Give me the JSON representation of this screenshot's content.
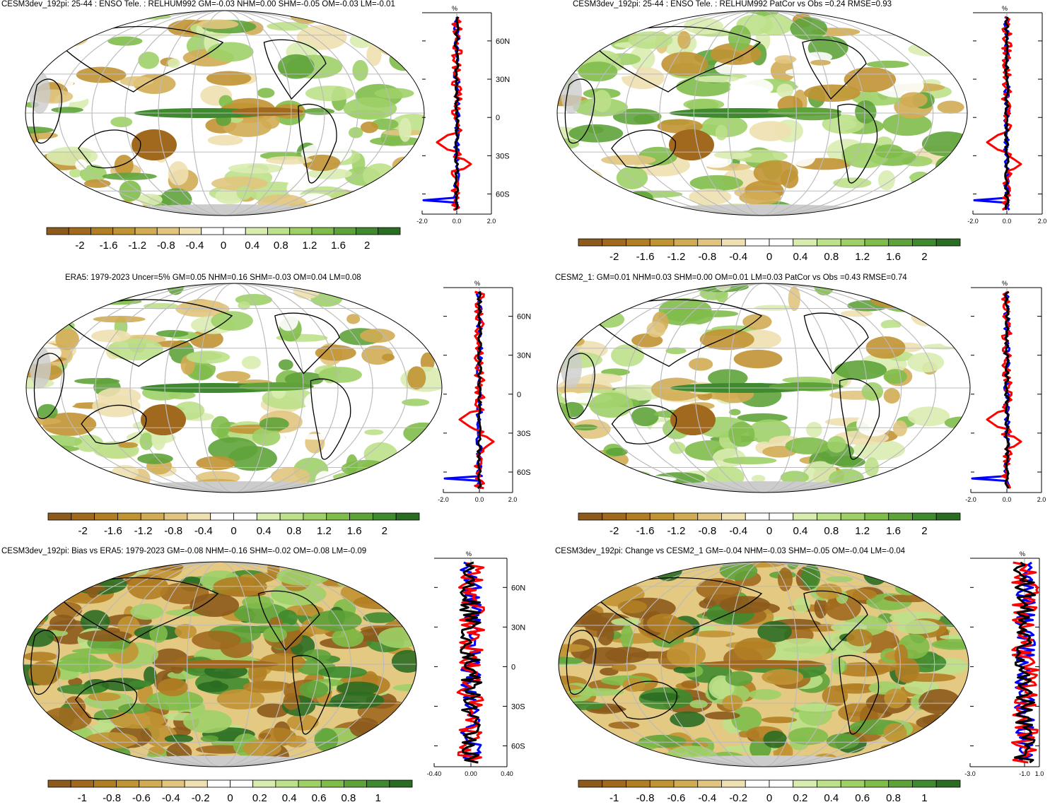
{
  "panels": [
    {
      "id": "p1",
      "title": "CESM3dev_192pi: 25-44 : ENSO Tele. : RELHUM992 GM=-0.03 NHM=0.00 SHM=-0.05 OM=-0.03 LM=-0.01",
      "profile_unit": "%",
      "profile_xticks": [
        "-2.0",
        "0.0",
        "2.0"
      ],
      "profile_lat_labels": [
        "60N",
        "30N",
        "0",
        "30S",
        "60S"
      ],
      "colorbar_labels": [
        "-2",
        "-1.6",
        "-1.2",
        "-0.8",
        "-0.4",
        "0",
        "0.4",
        "0.8",
        "1.2",
        "1.6",
        "2"
      ]
    },
    {
      "id": "p2",
      "title": "CESM3dev_192pi: 25-44 : ENSO Tele. : RELHUM992 PatCor vs Obs =0.24 RMSE=0.93",
      "profile_unit": "%",
      "profile_xticks": [
        "-2.0",
        "0.0",
        "2.0"
      ],
      "profile_lat_labels": [],
      "colorbar_labels": [
        "-2",
        "-1.6",
        "-1.2",
        "-0.8",
        "-0.4",
        "0",
        "0.4",
        "0.8",
        "1.2",
        "1.6",
        "2"
      ]
    },
    {
      "id": "p3",
      "title": "ERA5: 1979-2023 Uncer=5% GM=0.05 NHM=0.16 SHM=-0.03 OM=0.04 LM=0.08",
      "profile_unit": "%",
      "profile_xticks": [
        "-2.0",
        "0.0",
        "2.0"
      ],
      "profile_lat_labels": [
        "60N",
        "30N",
        "0",
        "30S",
        "60S"
      ],
      "colorbar_labels": [
        "-2",
        "-1.6",
        "-1.2",
        "-0.8",
        "-0.4",
        "0",
        "0.4",
        "0.8",
        "1.2",
        "1.6",
        "2"
      ]
    },
    {
      "id": "p4",
      "title": "CESM2_1: GM=0.01 NHM=0.03 SHM=0.00 OM=0.01 LM=0.03 PatCor vs Obs =0.43 RMSE=0.74",
      "profile_unit": "%",
      "profile_xticks": [
        "-2.0",
        "0.0",
        "2.0"
      ],
      "profile_lat_labels": [],
      "colorbar_labels": [
        "-2",
        "-1.6",
        "-1.2",
        "-0.8",
        "-0.4",
        "0",
        "0.4",
        "0.8",
        "1.2",
        "1.6",
        "2"
      ]
    },
    {
      "id": "p5",
      "title": "CESM3dev_192pi: Bias vs ERA5: 1979-2023 GM=-0.08 NHM=-0.16 SHM=-0.02 OM=-0.08 LM=-0.09",
      "profile_unit": "%",
      "profile_xticks": [
        "-0.40",
        "0.00",
        "0.40"
      ],
      "profile_lat_labels": [
        "60N",
        "30N",
        "0",
        "30S",
        "60S"
      ],
      "colorbar_labels": [
        "-1",
        "-0.8",
        "-0.6",
        "-0.4",
        "-0.2",
        "0",
        "0.2",
        "0.4",
        "0.6",
        "0.8",
        "1"
      ]
    },
    {
      "id": "p6",
      "title": "CESM3dev_192pi: Change vs CESM2_1 GM=-0.04 NHM=-0.03 SHM=-0.05 OM=-0.04 LM=-0.04",
      "profile_unit": "%",
      "profile_xticks": [
        "-3.0",
        "-1.0",
        "1.0"
      ],
      "profile_lat_labels": [],
      "colorbar_labels": [
        "-1",
        "-0.8",
        "-0.6",
        "-0.4",
        "-0.2",
        "0",
        "0.2",
        "0.4",
        "0.6",
        "0.8",
        "1"
      ]
    }
  ],
  "colors": {
    "palette": [
      "#8c5a1c",
      "#a0691e",
      "#b17e24",
      "#c19433",
      "#d2ac54",
      "#e1c57e",
      "#eee0b0",
      "#ffffff",
      "#ffffff",
      "#d9ecb0",
      "#bde08a",
      "#9fd068",
      "#7fbc4a",
      "#5ea33a",
      "#3f8a2e",
      "#2a6d22"
    ],
    "missing": "#cccccc",
    "cesm3": "#0000ff",
    "era5": "#ff0000",
    "cesm2": "#000000"
  }
}
